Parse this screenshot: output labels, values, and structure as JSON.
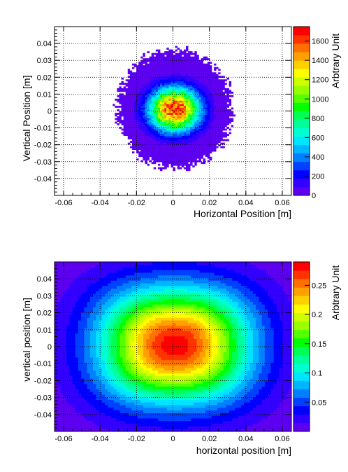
{
  "chart_data": [
    {
      "type": "heatmap",
      "xlabel": "Horizontal Position [m]",
      "ylabel": "Vertical Position [m]",
      "zlabel": "Arbtrary Unit",
      "xlim": [
        -0.065,
        0.065
      ],
      "ylim": [
        -0.05,
        0.05
      ],
      "zlim": [
        0,
        1750
      ],
      "x_ticks": [
        -0.06,
        -0.04,
        -0.02,
        0,
        0.02,
        0.04,
        0.06
      ],
      "x_tick_labels": [
        "-0.06",
        "-0.04",
        "-0.02",
        "0",
        "0.02",
        "0.04",
        "0.06"
      ],
      "y_ticks": [
        -0.04,
        -0.03,
        -0.02,
        -0.01,
        0,
        0.01,
        0.02,
        0.03,
        0.04
      ],
      "y_tick_labels": [
        "-0.04",
        "-0.03",
        "-0.02",
        "-0.01",
        "0",
        "0.01",
        "0.02",
        "0.03",
        "0.04"
      ],
      "z_ticks": [
        0,
        200,
        400,
        600,
        800,
        1000,
        1200,
        1400,
        1600
      ],
      "z_tick_labels": [
        "0",
        "200",
        "400",
        "600",
        "800",
        "1000",
        "1200",
        "1400",
        "1600"
      ],
      "grid": true,
      "distribution": {
        "shape": "measured beam spot, round, steep core",
        "center": [
          0.001,
          0.001
        ],
        "sigma": [
          0.009,
          0.0085
        ],
        "peak": 1700,
        "support_radius": [
          0.031,
          0.035
        ],
        "bins": [
          110,
          96
        ]
      }
    },
    {
      "type": "heatmap",
      "xlabel": "horizontal position [m]",
      "ylabel": "vertical position [m]",
      "zlabel": "Arbtrary Unit",
      "xlim": [
        -0.065,
        0.065
      ],
      "ylim": [
        -0.05,
        0.05
      ],
      "zlim": [
        0,
        0.29
      ],
      "x_ticks": [
        -0.06,
        -0.04,
        -0.02,
        0,
        0.02,
        0.04,
        0.06
      ],
      "x_tick_labels": [
        "-0.06",
        "-0.04",
        "-0.02",
        "0",
        "0.02",
        "0.04",
        "0.06"
      ],
      "y_ticks": [
        -0.04,
        -0.03,
        -0.02,
        -0.01,
        0,
        0.01,
        0.02,
        0.03,
        0.04
      ],
      "y_tick_labels": [
        "-0.04",
        "-0.03",
        "-0.02",
        "-0.01",
        "0",
        "0.01",
        "0.02",
        "0.03",
        "0.04"
      ],
      "z_ticks": [
        0.05,
        0.1,
        0.15,
        0.2,
        0.25
      ],
      "z_tick_labels": [
        "0.05",
        "0.1",
        "0.15",
        "0.2",
        "0.25"
      ],
      "grid": true,
      "distribution": {
        "shape": "simulated beam, smooth, rounded-rectangular contours",
        "center": [
          0.001,
          0.001
        ],
        "sigma": [
          0.03,
          0.0245
        ],
        "peak": 0.285,
        "bins": [
          80,
          64
        ]
      }
    }
  ]
}
